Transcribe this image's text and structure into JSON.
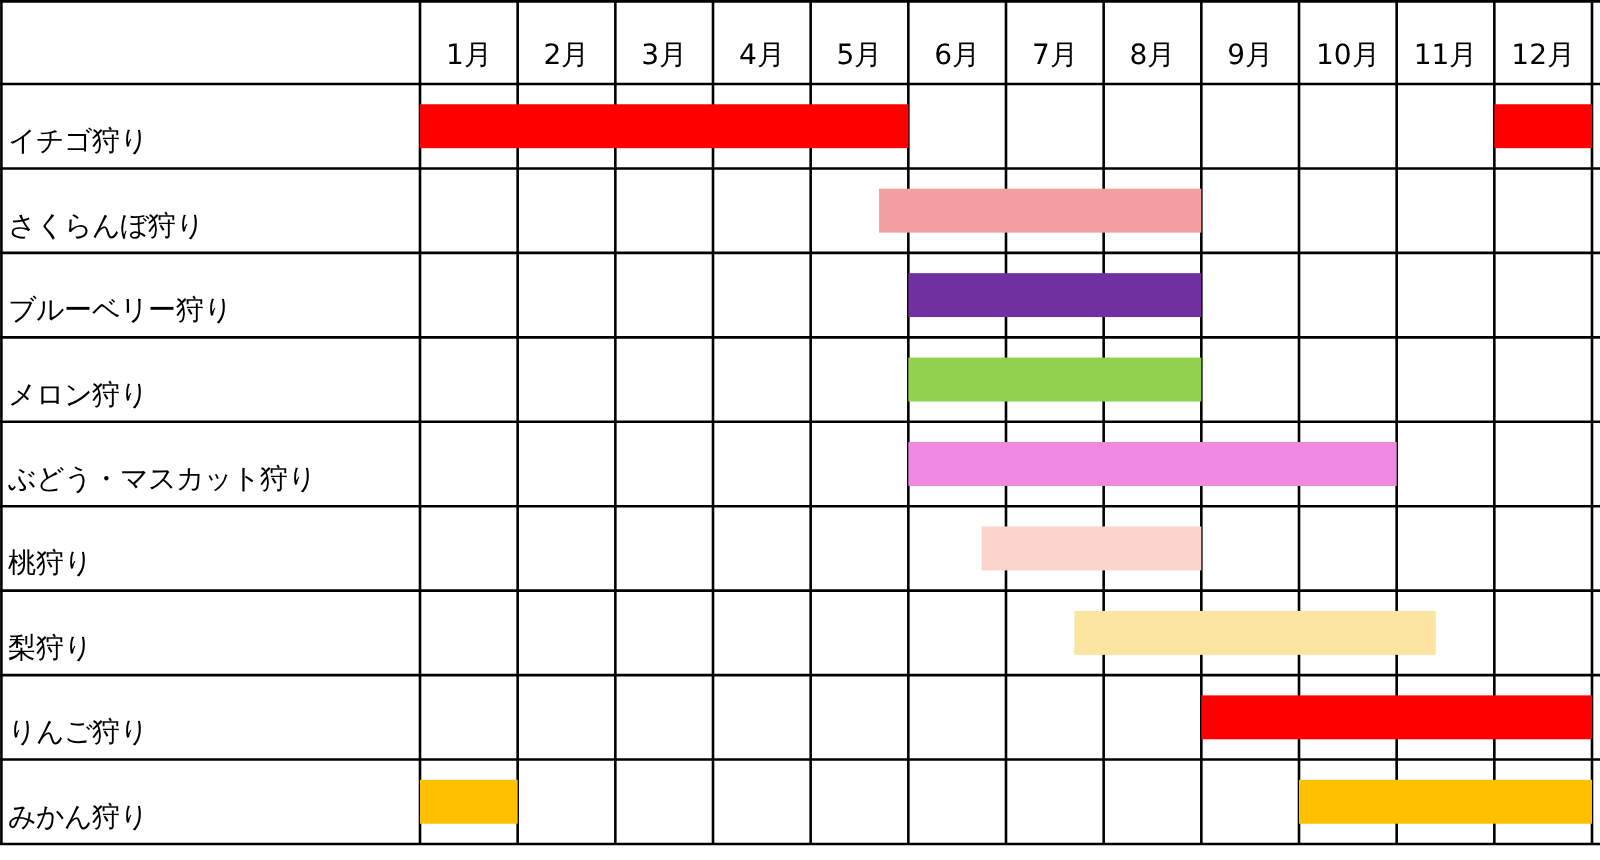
{
  "chart_data": {
    "type": "bar",
    "orientation": "horizontal",
    "grid": true,
    "categories": [
      "イチゴ狩り",
      "さくらんぼ狩り",
      "ブルーベリー狩り",
      "メロン狩り",
      "ぶどう・マスカット狩り",
      "桃狩り",
      "梨狩り",
      "りんご狩り",
      "みかん狩り"
    ],
    "series": [
      {
        "base": [
          0,
          4.7,
          5,
          5,
          5,
          5.75,
          6.7,
          8,
          0
        ],
        "values": [
          5,
          3.3,
          3,
          3,
          5,
          2.25,
          3.7,
          4,
          1
        ],
        "colors": [
          "#ff0000",
          "#f4a0a0",
          "#7030a0",
          "#92d050",
          "#ee88e0",
          "#fbd5cc",
          "#fbe5a0",
          "#ff0000",
          "#ffc000"
        ]
      },
      {
        "base": [
          11,
          null,
          null,
          null,
          null,
          null,
          null,
          null,
          9
        ],
        "values": [
          1,
          null,
          null,
          null,
          null,
          null,
          null,
          null,
          3
        ],
        "colors": [
          "#ff0000",
          null,
          null,
          null,
          null,
          null,
          null,
          null,
          "#ffc000"
        ]
      }
    ],
    "xlim": [
      0,
      12
    ],
    "xticks": [
      {
        "value": 0.5,
        "label": "1月"
      },
      {
        "value": 1.5,
        "label": "2月"
      },
      {
        "value": 2.5,
        "label": "3月"
      },
      {
        "value": 3.5,
        "label": "4月"
      },
      {
        "value": 4.5,
        "label": "5月"
      },
      {
        "value": 5.5,
        "label": "6月"
      },
      {
        "value": 6.5,
        "label": "7月"
      },
      {
        "value": 7.5,
        "label": "8月"
      },
      {
        "value": 8.5,
        "label": "9月"
      },
      {
        "value": 9.5,
        "label": "10月"
      },
      {
        "value": 10.5,
        "label": "11月"
      },
      {
        "value": 11.5,
        "label": "12月"
      }
    ]
  }
}
